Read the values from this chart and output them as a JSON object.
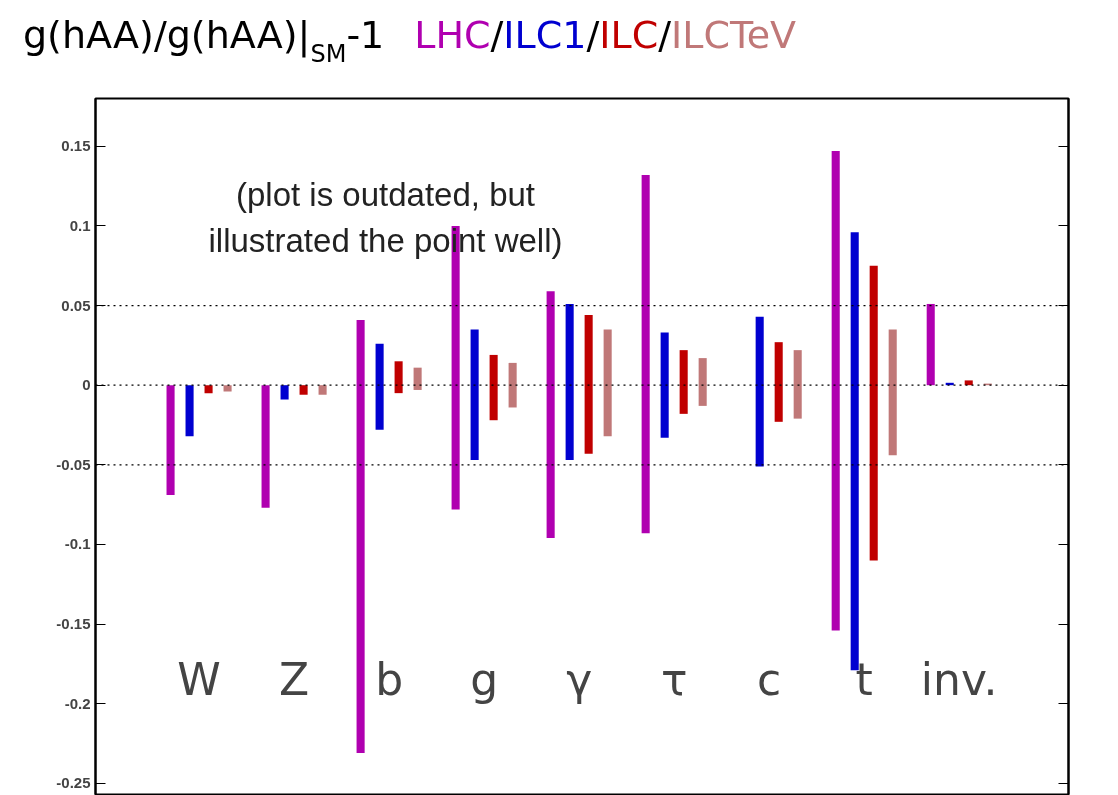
{
  "chart_data": {
    "type": "bar",
    "title": "g(hAA)/g(hAA)|$_{SM}$-1",
    "categories": [
      "W",
      "Z",
      "b",
      "g",
      "γ",
      "τ",
      "c",
      "t",
      "inv."
    ],
    "series": [
      {
        "name": "LHC",
        "color": "#b000b0",
        "base": [
          -0.069,
          -0.077,
          -0.231,
          -0.078,
          -0.096,
          -0.093,
          null,
          -0.154,
          0
        ],
        "values": [
          0.069,
          0.077,
          0.272,
          0.178,
          0.155,
          0.225,
          null,
          0.301,
          0.051
        ]
      },
      {
        "name": "ILC1",
        "color": "#0000d0",
        "base": [
          -0.032,
          -0.009,
          -0.028,
          -0.047,
          -0.047,
          -0.033,
          -0.051,
          -0.179,
          0
        ],
        "values": [
          0.032,
          0.009,
          0.054,
          0.082,
          0.098,
          0.066,
          0.094,
          0.275,
          0.0015
        ]
      },
      {
        "name": "ILC",
        "color": "#c00000",
        "base": [
          -0.005,
          -0.006,
          -0.005,
          -0.022,
          -0.043,
          -0.018,
          -0.023,
          -0.11,
          0
        ],
        "values": [
          0.005,
          0.006,
          0.02,
          0.041,
          0.087,
          0.04,
          0.05,
          0.185,
          0.003
        ]
      },
      {
        "name": "ILCTeV",
        "color": "#c07878",
        "base": [
          -0.004,
          -0.006,
          -0.003,
          -0.014,
          -0.032,
          -0.013,
          -0.021,
          -0.044,
          0
        ],
        "values": [
          0.004,
          0.006,
          0.014,
          0.028,
          0.067,
          0.03,
          0.043,
          0.079,
          0.001
        ]
      }
    ],
    "ylim": [
      -0.257,
      0.18
    ],
    "yticks": [
      -0.25,
      -0.2,
      -0.15,
      -0.1,
      -0.05,
      0,
      0.05,
      0.1,
      0.15
    ],
    "ref_lines": [
      {
        "axis": "y",
        "value": 0.05,
        "color": "#000000",
        "line_style": "dotted"
      },
      {
        "axis": "y",
        "value": 0,
        "color": "#000000",
        "line_style": "dotted"
      },
      {
        "axis": "y",
        "value": -0.05,
        "color": "#000000",
        "line_style": "dotted"
      }
    ],
    "annotations": [
      "(plot is outdated, but\nillustrated the point well)",
      "/",
      "/",
      "/"
    ],
    "grid": false,
    "tick_labels": "y"
  }
}
